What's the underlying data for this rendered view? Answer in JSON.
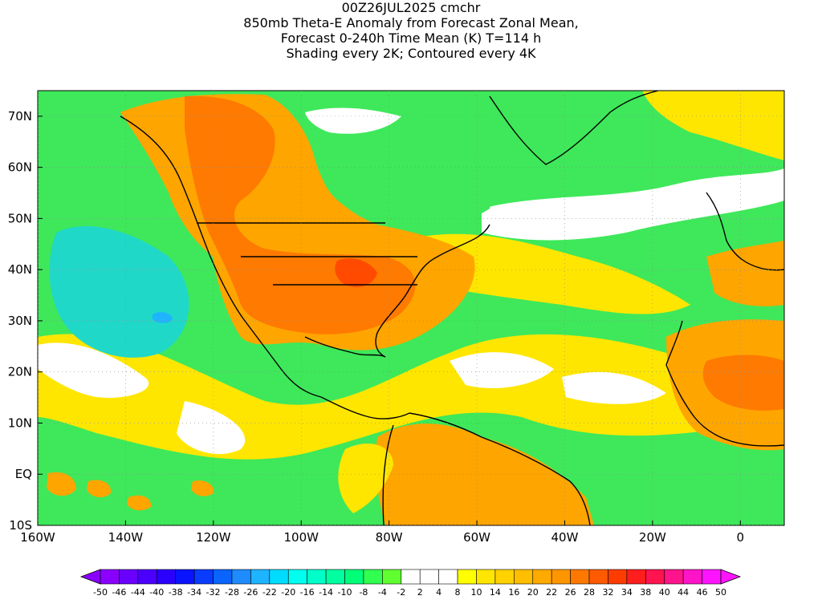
{
  "title": {
    "line1": "00Z26JUL2025 cmchr",
    "line2": "850mb Theta-E Anomaly from Forecast Zonal Mean,",
    "line3": "Forecast 0-240h Time Mean (K) T=114 h",
    "line4": "Shading every 2K; Contoured every 4K"
  },
  "axes": {
    "lat_labels": [
      "70N",
      "60N",
      "50N",
      "40N",
      "30N",
      "20N",
      "10N",
      "EQ",
      "10S"
    ],
    "lon_labels": [
      "160W",
      "140W",
      "120W",
      "100W",
      "80W",
      "60W",
      "40W",
      "20W",
      "0"
    ]
  },
  "colorbar": {
    "labels": [
      "-50",
      "-46",
      "-44",
      "-40",
      "-38",
      "-34",
      "-32",
      "-28",
      "-26",
      "-22",
      "-20",
      "-16",
      "-14",
      "-10",
      "-8",
      "-4",
      "-2",
      "2",
      "4",
      "8",
      "10",
      "14",
      "16",
      "20",
      "22",
      "26",
      "28",
      "32",
      "34",
      "38",
      "40",
      "44",
      "46",
      "50"
    ],
    "colors": [
      "#8a00ff",
      "#6a00ff",
      "#4b00ff",
      "#2a00ff",
      "#0a14ff",
      "#0a3cff",
      "#0a64ff",
      "#1e8cff",
      "#1eb4ff",
      "#00dcff",
      "#00ffee",
      "#00ffc8",
      "#00ffa0",
      "#00ff78",
      "#30ff50",
      "#60ff30",
      "#ffffff",
      "#ffffff",
      "#ffffff",
      "#ffff00",
      "#ffe600",
      "#ffd200",
      "#ffbe00",
      "#ffaa00",
      "#ff9600",
      "#ff7800",
      "#ff5a00",
      "#ff3c00",
      "#ff1e1e",
      "#ff1450",
      "#ff148c",
      "#ff14c8",
      "#ff14ff"
    ]
  },
  "colors": {
    "ocean_green": "#3ee85a",
    "cool_cyan": "#20d8c8",
    "warm_yellow": "#ffe600",
    "warm_orange": "#ffa500",
    "hot_orange": "#ff7a00",
    "hot_red": "#ff4a00",
    "neutral_white": "#ffffff",
    "coast": "#000000"
  },
  "icons": {
    "colorbar_left_arrow": "left-triangle",
    "colorbar_right_arrow": "right-triangle"
  }
}
